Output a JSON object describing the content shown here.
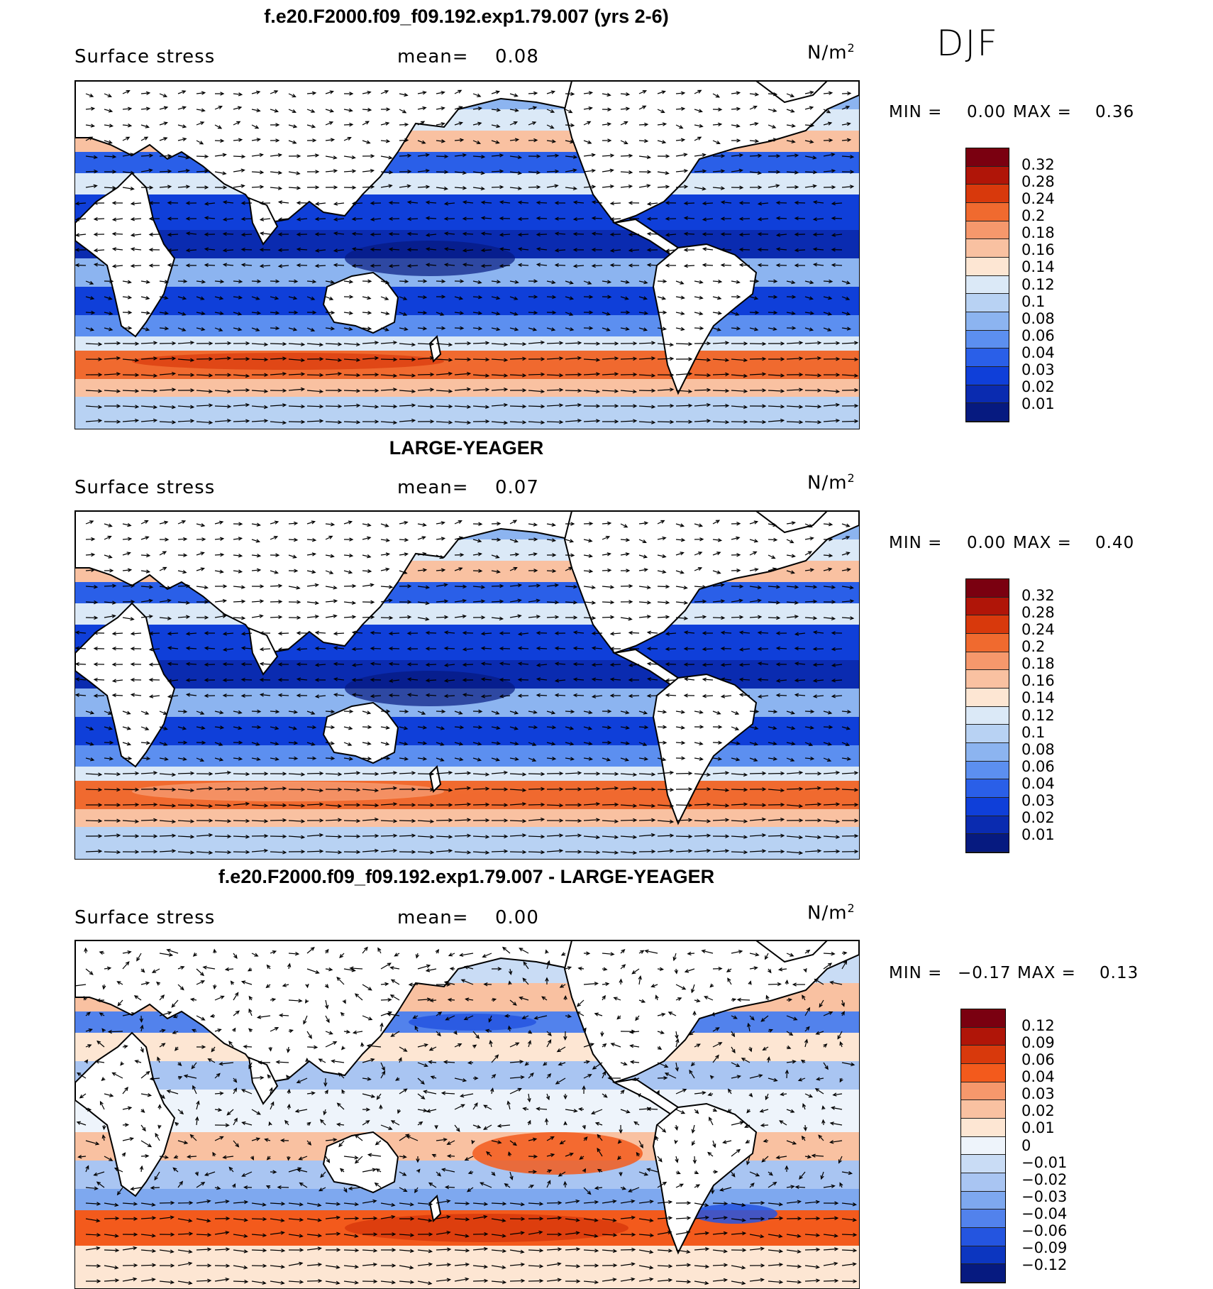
{
  "season": "DJF",
  "units": "N/m",
  "units_exp": "2",
  "panels": [
    {
      "title": "f.e20.F2000.f09_f09.192.exp1.79.007 (yrs 2-6)",
      "variable": "Surface stress",
      "mean_label": "mean=",
      "mean_value": "0.08",
      "min_label": "MIN =",
      "min_value": "0.00",
      "max_label": "MAX =",
      "max_value": "0.36",
      "colorbar_levels": [
        "0.32",
        "0.28",
        "0.24",
        "0.2",
        "0.18",
        "0.16",
        "0.14",
        "0.12",
        "0.1",
        "0.08",
        "0.06",
        "0.04",
        "0.03",
        "0.02",
        "0.01"
      ]
    },
    {
      "title": "LARGE-YEAGER",
      "variable": "Surface stress",
      "mean_label": "mean=",
      "mean_value": "0.07",
      "min_label": "MIN =",
      "min_value": "0.00",
      "max_label": "MAX =",
      "max_value": "0.40",
      "colorbar_levels": [
        "0.32",
        "0.28",
        "0.24",
        "0.2",
        "0.18",
        "0.16",
        "0.14",
        "0.12",
        "0.1",
        "0.08",
        "0.06",
        "0.04",
        "0.03",
        "0.02",
        "0.01"
      ]
    },
    {
      "title": "f.e20.F2000.f09_f09.192.exp1.79.007 - LARGE-YEAGER",
      "variable": "Surface stress",
      "mean_label": "mean=",
      "mean_value": "0.00",
      "min_label": "MIN =",
      "min_value": "−0.17",
      "max_label": "MAX =",
      "max_value": "0.13",
      "colorbar_levels": [
        "0.12",
        "0.09",
        "0.06",
        "0.04",
        "0.03",
        "0.02",
        "0.01",
        "0",
        "−0.01",
        "−0.02",
        "−0.03",
        "−0.04",
        "−0.06",
        "−0.09",
        "−0.12"
      ]
    }
  ],
  "colors": {
    "abs_scale": [
      "#7a0010",
      "#b01508",
      "#d8390c",
      "#f06a2f",
      "#f6986c",
      "#f9c1a1",
      "#fde6d3",
      "#dbe9f7",
      "#b8d2f3",
      "#8cb4f0",
      "#5c8ff0",
      "#2a5fe8",
      "#0f3fd9",
      "#0a2bb0",
      "#061a80"
    ],
    "diff_scale": [
      "#7a0010",
      "#b01508",
      "#d8390c",
      "#f35a1c",
      "#f6986c",
      "#f9c1a1",
      "#fde6d3",
      "#eef4fb",
      "#c9dcf5",
      "#a9c5f2",
      "#7ea8ef",
      "#5282ec",
      "#2455e0",
      "#0c36c0",
      "#061a80"
    ],
    "land": "#ffffff",
    "coast": "#000000"
  }
}
